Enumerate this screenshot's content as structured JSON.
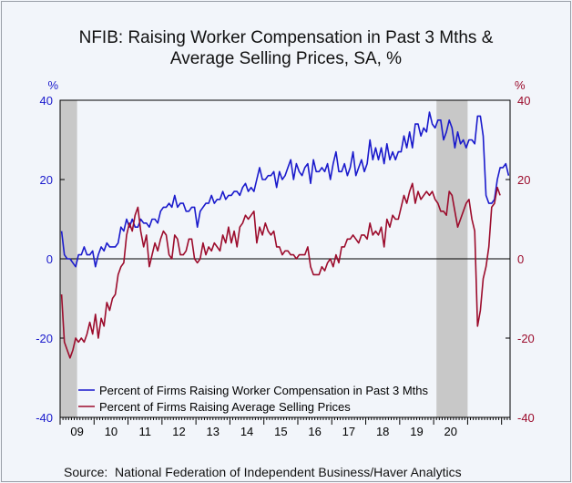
{
  "title_line1": "NFIB: Raising Worker Compensation in Past 3 Mths &",
  "title_line2": "Average Selling Prices, SA, %",
  "source": "Source:  National Federation of Independent Business/Haver Analytics",
  "colors": {
    "series1": "#1a1acc",
    "series2": "#9c0c2c",
    "recession": "#c8c8c8",
    "plot_bg": "#f2f5fa"
  },
  "chart_data": {
    "type": "line",
    "title": "NFIB: Raising Worker Compensation in Past 3 Mths & Average Selling Prices, SA, %",
    "x_start": "2009-01",
    "x_freq": "monthly",
    "x_tick_labels": [
      "09",
      "10",
      "11",
      "12",
      "13",
      "14",
      "15",
      "16",
      "17",
      "18",
      "19",
      "20"
    ],
    "left_axis": {
      "unit_label": "%",
      "ylim": [
        -40,
        40
      ],
      "ticks": [
        40,
        20,
        0,
        -20,
        -40
      ]
    },
    "right_axis": {
      "unit_label": "%",
      "ylim": [
        -40,
        40
      ],
      "ticks": [
        40,
        20,
        0,
        -20,
        -40
      ]
    },
    "recessions": [
      [
        "2009-01",
        "2009-06"
      ],
      [
        "2020-02",
        "2020-12"
      ]
    ],
    "legend_position": "bottom-left",
    "series": [
      {
        "name": "Percent of Firms Raising Worker Compensation in Past 3 Mths",
        "values": [
          7,
          1,
          0,
          0,
          -1,
          -2,
          1,
          1,
          3,
          1,
          1,
          2,
          -2,
          1,
          3,
          2,
          4,
          3,
          3,
          3,
          4,
          8,
          7,
          10,
          8,
          10,
          8,
          8,
          10,
          9,
          9,
          8,
          10,
          10,
          9,
          12,
          13,
          13,
          14,
          13,
          16,
          13,
          14,
          14,
          12,
          12,
          13,
          13,
          8,
          12,
          13,
          14,
          14,
          16,
          14,
          15,
          15,
          17,
          15,
          16,
          16,
          17,
          17,
          16,
          18,
          19,
          17,
          18,
          17,
          20,
          23,
          20,
          20,
          21,
          21,
          22,
          18,
          22,
          20,
          21,
          23,
          25,
          20,
          24,
          22,
          21,
          23,
          24,
          19,
          25,
          22,
          22,
          23,
          22,
          24,
          20,
          24,
          27,
          22,
          22,
          24,
          21,
          23,
          27,
          21,
          23,
          25,
          22,
          24,
          30,
          25,
          28,
          25,
          28,
          24,
          29,
          25,
          27,
          25,
          27,
          27,
          31,
          28,
          32,
          28,
          34,
          34,
          31,
          33,
          32,
          37,
          34,
          33,
          35,
          35,
          30,
          32,
          35,
          33,
          28,
          32,
          29,
          30,
          28,
          30,
          30,
          29,
          36,
          36,
          31,
          16,
          14,
          14,
          15,
          20,
          23,
          23,
          24,
          21
        ],
        "color": "#1a1acc"
      },
      {
        "name": "Percent of Firms Raising Average Selling Prices",
        "values": [
          -9,
          -21,
          -23,
          -25,
          -23,
          -20,
          -21,
          -20,
          -21,
          -19,
          -16,
          -19,
          -14,
          -20,
          -15,
          -17,
          -11,
          -13,
          -10,
          -9,
          -4,
          -2,
          -1,
          6,
          9,
          7,
          11,
          13,
          7,
          3,
          6,
          -2,
          1,
          4,
          2,
          5,
          7,
          6,
          1,
          0,
          6,
          5,
          1,
          1,
          2,
          5,
          5,
          0,
          -1,
          0,
          4,
          1,
          3,
          2,
          4,
          3,
          2,
          6,
          4,
          8,
          4,
          7,
          3,
          8,
          9,
          11,
          10,
          11,
          12,
          4,
          8,
          6,
          9,
          7,
          6,
          7,
          3,
          3,
          1,
          2,
          2,
          1,
          1,
          0,
          1,
          1,
          1,
          3,
          -2,
          -4,
          -4,
          -4,
          -2,
          -3,
          -1,
          0,
          -2,
          1,
          -1,
          3,
          3,
          5,
          5,
          6,
          5,
          4,
          6,
          6,
          5,
          9,
          6,
          7,
          6,
          8,
          3,
          10,
          8,
          11,
          10,
          10,
          13,
          16,
          14,
          17,
          19,
          14,
          17,
          15,
          16,
          17,
          16,
          17,
          15,
          14,
          12,
          12,
          11,
          17,
          16,
          12,
          8,
          10,
          12,
          14,
          15,
          10,
          7,
          -17,
          -13,
          -5,
          -2,
          3,
          13,
          14,
          18,
          16
        ],
        "color": "#9c0c2c"
      }
    ]
  }
}
